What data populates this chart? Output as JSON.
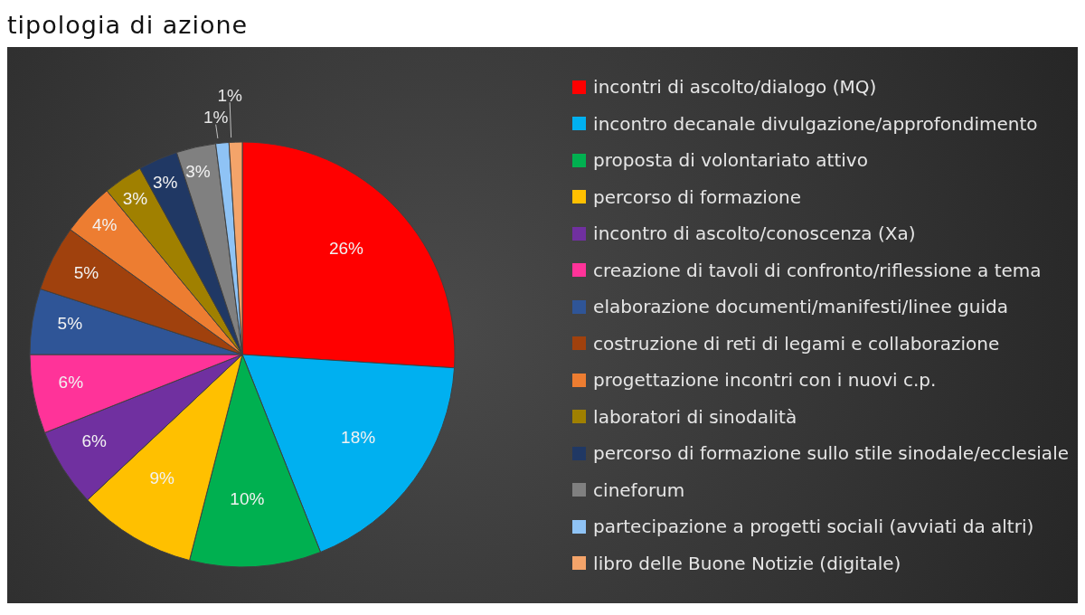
{
  "chart_data": {
    "type": "pie",
    "title": "tipologia di azione",
    "categories": [
      "incontri di ascolto/dialogo (MQ)",
      "incontro decanale divulgazione/approfondimento",
      "proposta di volontariato attivo",
      "percorso di formazione",
      "incontro di ascolto/conoscenza (Xa)",
      "creazione di tavoli di confronto/riflessione a tema",
      "elaborazione documenti/manifesti/linee guida",
      "costruzione di reti di legami e collaborazione",
      "progettazione incontri con i nuovi c.p.",
      "laboratori di sinodalità",
      "percorso di formazione sullo stile sinodale/ecclesiale",
      "cineforum",
      "partecipazione a progetti sociali (avviati da altri)",
      "libro delle Buone Notizie (digitale)"
    ],
    "values": [
      26,
      18,
      10,
      9,
      6,
      6,
      5,
      5,
      4,
      3,
      3,
      3,
      1,
      1
    ],
    "value_labels": [
      "26%",
      "18%",
      "10%",
      "9%",
      "6%",
      "6%",
      "5%",
      "5%",
      "4%",
      "3%",
      "3%",
      "3%",
      "1%",
      "1%"
    ],
    "colors": [
      "#ff0000",
      "#00b0f0",
      "#00b050",
      "#ffc000",
      "#7030a0",
      "#ff3399",
      "#2f5597",
      "#a0410d",
      "#ed7d31",
      "#a08000",
      "#203864",
      "#808080",
      "#8fc3f5",
      "#f4a46a"
    ],
    "legend": "right"
  }
}
